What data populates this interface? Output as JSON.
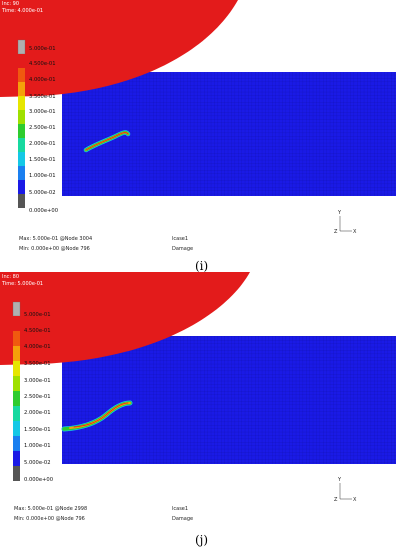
{
  "panels": [
    {
      "id": "i",
      "step": "Inc:  90",
      "time": "Time:  4.000e-01",
      "legend": [
        "5.000e-01",
        "4.500e-01",
        "4.000e-01",
        "3.500e-01",
        "3.000e-01",
        "2.500e-01",
        "2.000e-01",
        "1.500e-01",
        "1.000e-01",
        "5.000e-02",
        "0.000e+00"
      ],
      "max_line": "Max:  5.000e-01 @Node  3004",
      "min_line": "Min:  0.000e+00 @Node  796",
      "case": "lcase1",
      "quantity": "Damage",
      "caption": "(i)"
    },
    {
      "id": "j",
      "step": "Inc:  80",
      "time": "Time:  5.000e-01",
      "legend": [
        "5.000e-01",
        "4.500e-01",
        "4.000e-01",
        "3.500e-01",
        "3.000e-01",
        "2.500e-01",
        "2.000e-01",
        "1.500e-01",
        "1.000e-01",
        "5.000e-02",
        "0.000e+00"
      ],
      "max_line": "Max:  5.000e-01 @Node  2998",
      "min_line": "Min:  0.000e+00 @Node  796",
      "case": "lcase1",
      "quantity": "Damage",
      "caption": "(j)"
    }
  ],
  "axis_triad": {
    "y": "Y",
    "z": "Z",
    "x": "X"
  },
  "colors": {
    "mesh_blue": "#1a1ae6",
    "tool_red": "#e31b1b",
    "legend_scale": [
      "#b0b0b0",
      "#e31b1b",
      "#f0590f",
      "#f5a00a",
      "#e6e600",
      "#9fe000",
      "#2ecc2e",
      "#17d9a0",
      "#14c8e6",
      "#1a7ff0",
      "#1a1ae6",
      "#555555"
    ]
  }
}
